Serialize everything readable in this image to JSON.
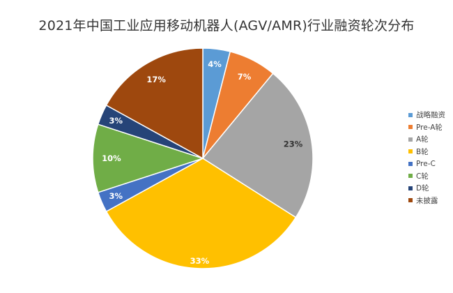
{
  "chart_data": {
    "type": "pie",
    "title": "2021年中国工业应用移动机器人(AGV/AMR)行业融资轮次分布",
    "start_angle_deg": 0,
    "direction": "clockwise",
    "legend_position": "right",
    "slices": [
      {
        "label": "战略融资",
        "value": 4,
        "display": "4%",
        "color": "#5b9bd5"
      },
      {
        "label": "Pre-A轮",
        "value": 7,
        "display": "7%",
        "color": "#ed7d31"
      },
      {
        "label": "A轮",
        "value": 23,
        "display": "23%",
        "color": "#a5a5a5"
      },
      {
        "label": "B轮",
        "value": 33,
        "display": "33%",
        "color": "#ffc000"
      },
      {
        "label": "Pre-C",
        "value": 3,
        "display": "3%",
        "color": "#4472c4"
      },
      {
        "label": "C轮",
        "value": 10,
        "display": "10%",
        "color": "#70ad47"
      },
      {
        "label": "D轮",
        "value": 3,
        "display": "3%",
        "color": "#264478"
      },
      {
        "label": "未披露",
        "value": 17,
        "display": "17%",
        "color": "#9e480e"
      }
    ]
  }
}
